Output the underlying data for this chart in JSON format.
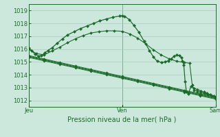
{
  "title": "Pression niveau de la mer( hPa )",
  "bg_color": "#cce8dc",
  "outer_bg": "#cce8dc",
  "grid_color": "#aaccbb",
  "line_color": "#1a6b2a",
  "ylim": [
    1011.5,
    1019.5
  ],
  "xtick_labels": [
    "Jeu",
    "Ven",
    "Sam"
  ],
  "xtick_positions": [
    0,
    144,
    288
  ],
  "ytick_values": [
    1012,
    1013,
    1014,
    1015,
    1016,
    1017,
    1018,
    1019
  ],
  "fontsize_label": 7,
  "fontsize_tick": 6,
  "main_x": [
    0,
    5,
    10,
    15,
    20,
    25,
    30,
    36,
    44,
    52,
    60,
    70,
    80,
    90,
    100,
    110,
    120,
    130,
    140,
    144,
    148,
    155,
    162,
    170,
    178,
    186,
    192,
    198,
    205,
    210,
    215,
    220,
    224,
    228,
    232,
    235,
    237,
    239,
    241,
    243,
    246,
    250,
    255,
    260,
    265,
    270,
    275,
    280,
    285,
    288
  ],
  "main_y": [
    1016.1,
    1015.85,
    1015.6,
    1015.45,
    1015.5,
    1015.7,
    1015.9,
    1016.1,
    1016.45,
    1016.8,
    1017.1,
    1017.35,
    1017.6,
    1017.8,
    1018.0,
    1018.2,
    1018.35,
    1018.48,
    1018.57,
    1018.6,
    1018.55,
    1018.3,
    1017.85,
    1017.3,
    1016.6,
    1015.9,
    1015.4,
    1015.05,
    1014.95,
    1015.0,
    1015.1,
    1015.25,
    1015.45,
    1015.55,
    1015.5,
    1015.35,
    1015.1,
    1014.75,
    1013.5,
    1012.7,
    1012.5,
    1013.1,
    1012.95,
    1012.85,
    1012.75,
    1012.65,
    1012.55,
    1012.45,
    1012.35,
    1012.2
  ],
  "aux_x": [
    0,
    12,
    24,
    36,
    48,
    60,
    72,
    84,
    96,
    108,
    120,
    132,
    144,
    156,
    168,
    180,
    192,
    204,
    216,
    228,
    240,
    248,
    252,
    255,
    260,
    265,
    270,
    276,
    282,
    288
  ],
  "aux_y": [
    1016.0,
    1015.65,
    1015.55,
    1015.85,
    1016.15,
    1016.5,
    1016.8,
    1017.05,
    1017.25,
    1017.35,
    1017.42,
    1017.42,
    1017.38,
    1017.18,
    1016.85,
    1016.42,
    1015.95,
    1015.55,
    1015.25,
    1015.05,
    1014.95,
    1014.9,
    1013.2,
    1012.8,
    1012.7,
    1012.62,
    1012.55,
    1012.45,
    1012.38,
    1012.3
  ],
  "flat_starts": [
    1015.5,
    1015.45,
    1015.4,
    1015.35
  ],
  "flat_ends": [
    1012.25,
    1012.2,
    1012.15,
    1012.1
  ]
}
